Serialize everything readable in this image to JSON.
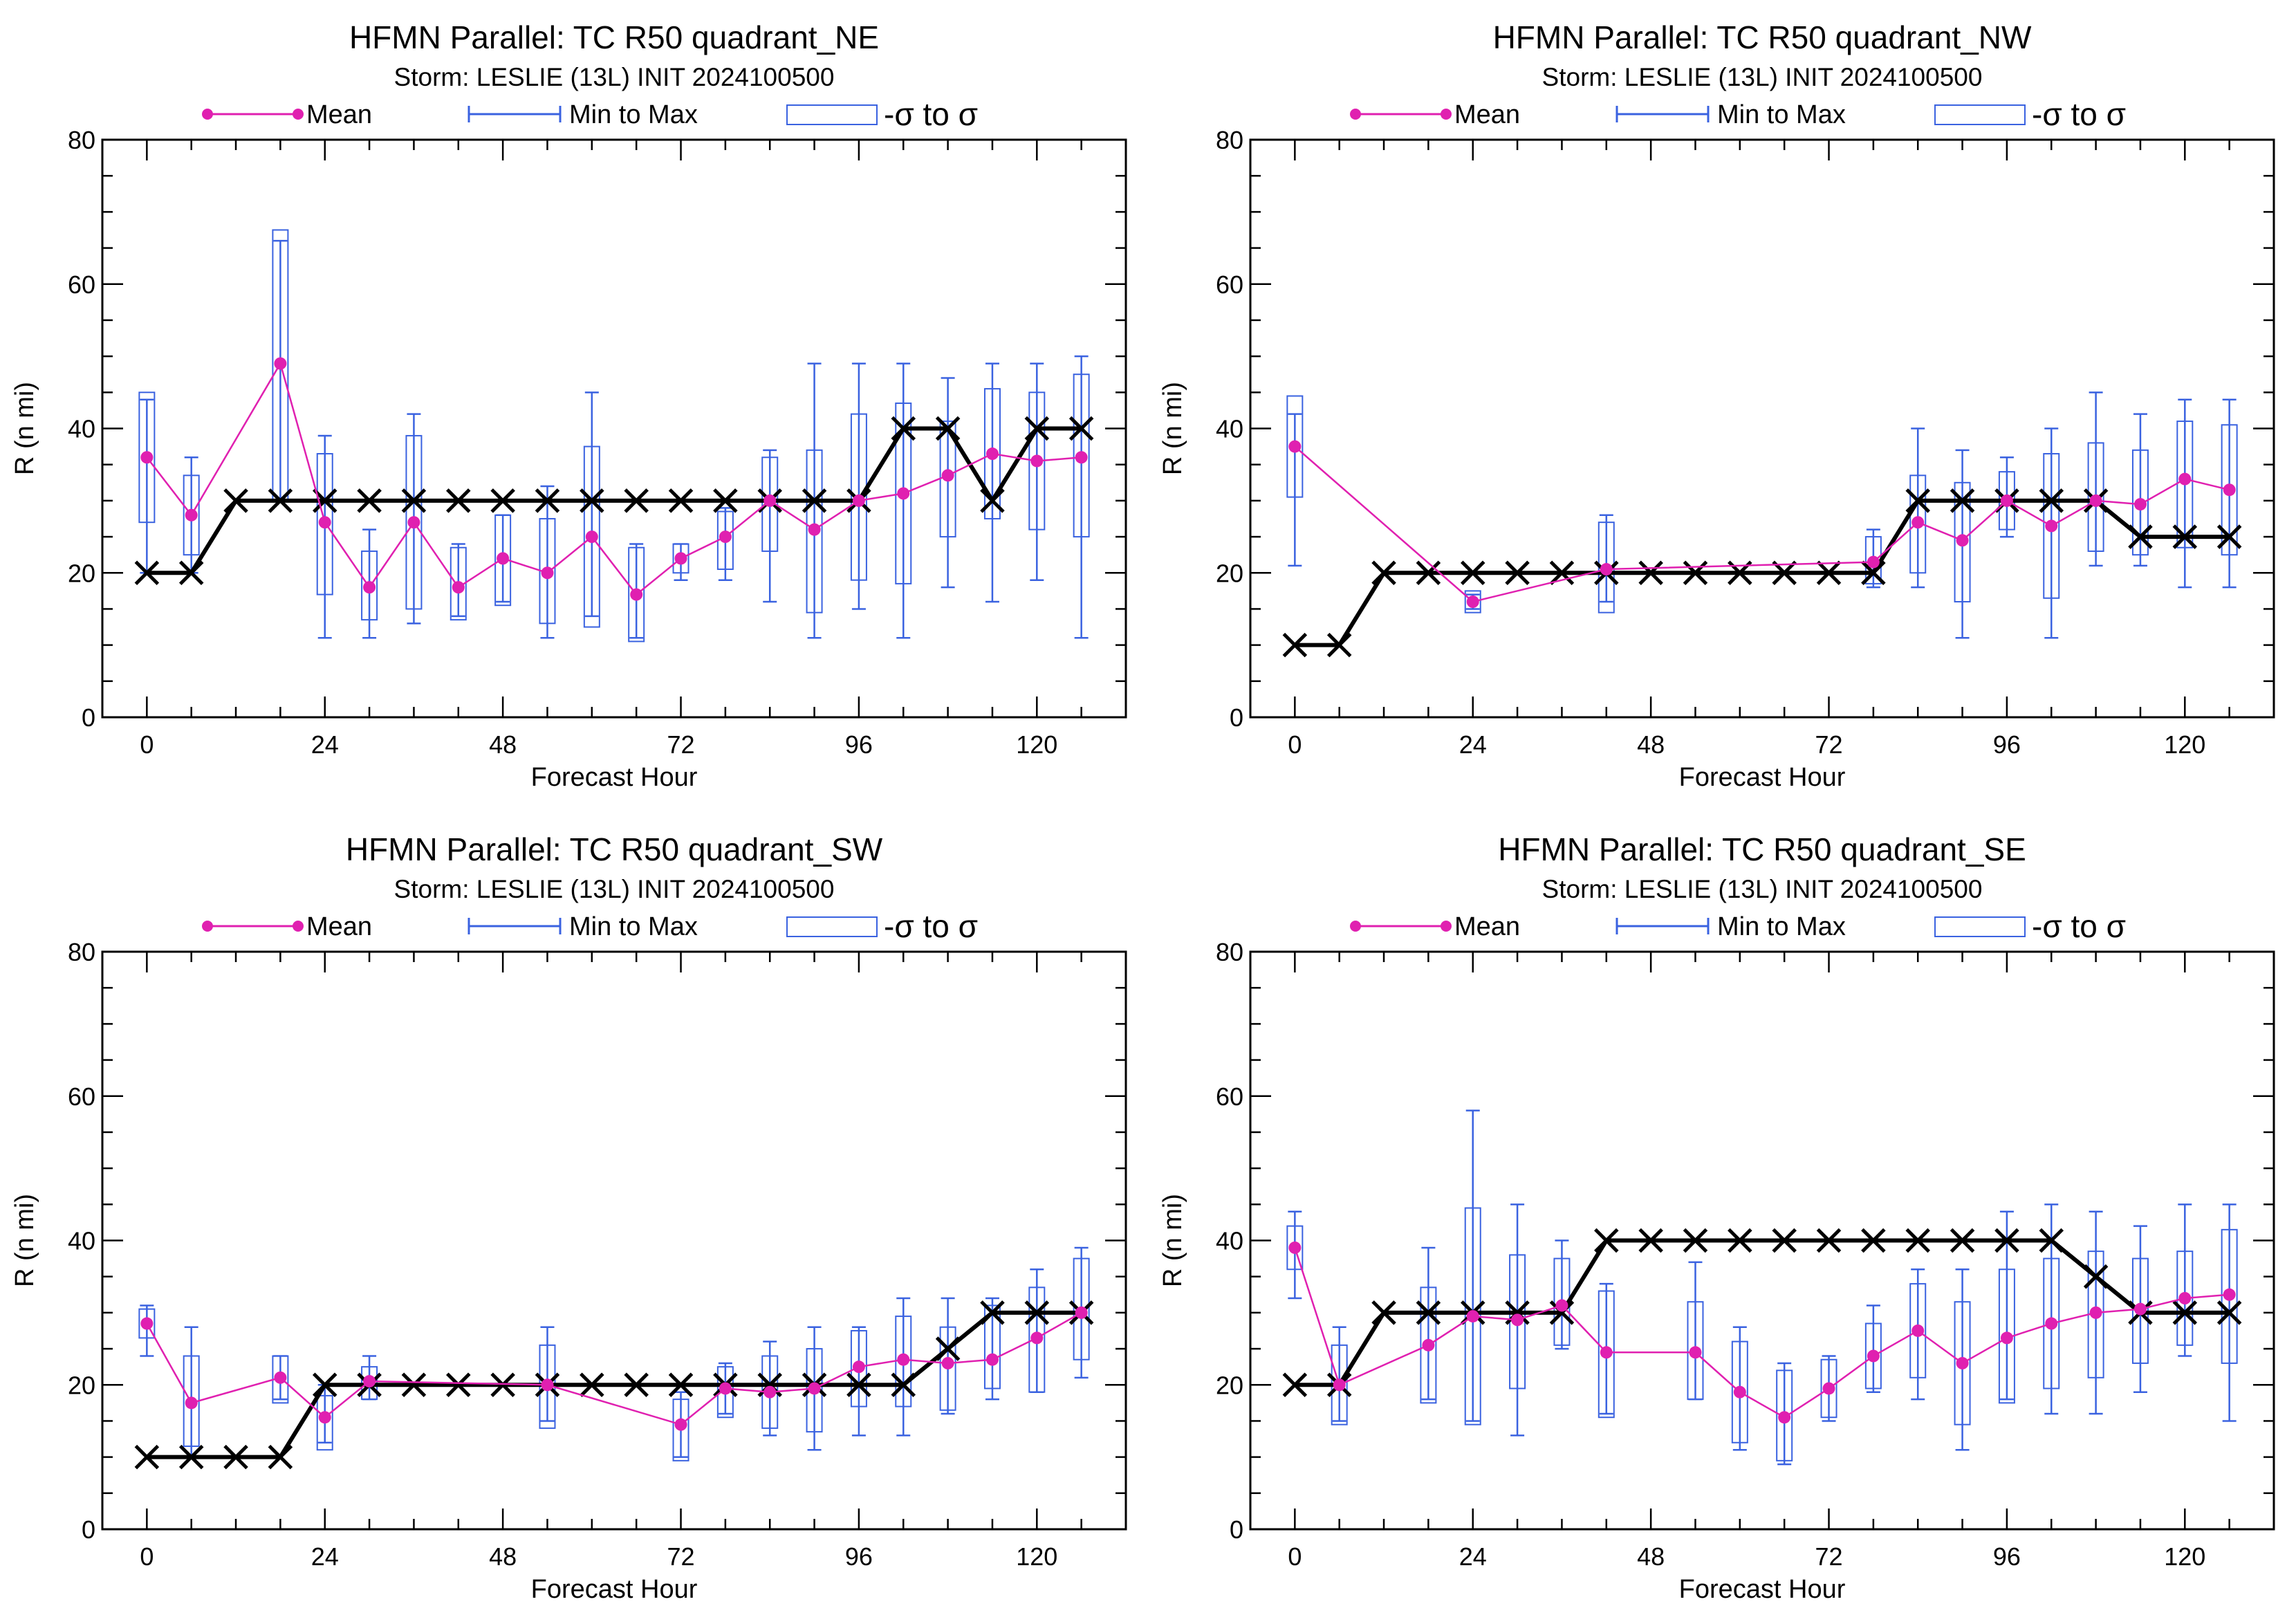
{
  "colors": {
    "mean": "#e020b0",
    "range": "#3a62e0",
    "best_track": "#000000",
    "axis": "#000000"
  },
  "legend": {
    "mean": "Mean",
    "minmax": "Min to Max",
    "sigma": "-σ to σ"
  },
  "xlabel": "Forecast Hour",
  "ylabel": "R (n mi)",
  "xticks": [
    "0",
    "24",
    "48",
    "72",
    "96",
    "120"
  ],
  "yticks": [
    "0",
    "20",
    "40",
    "60",
    "80"
  ],
  "chart_data": [
    {
      "type": "box",
      "title": "HFMN Parallel: TC  R50 quadrant_NE",
      "subtitle": "Storm: LESLIE (13L) INIT 2024100500",
      "xlim": [
        -6,
        132
      ],
      "ylim": [
        0,
        80
      ],
      "hours": [
        0,
        6,
        18,
        24,
        30,
        36,
        42,
        48,
        54,
        60,
        66,
        72,
        78,
        84,
        90,
        96,
        102,
        108,
        114,
        120,
        126
      ],
      "mean": [
        36,
        28,
        49,
        27,
        18,
        27,
        18,
        22,
        20,
        25,
        17,
        22,
        25,
        30,
        26,
        30,
        31,
        33.5,
        36.5,
        35.5,
        36
      ],
      "min": [
        20,
        20,
        30,
        11,
        11,
        13,
        14,
        16,
        11,
        14,
        11,
        19,
        19,
        16,
        11,
        15,
        11,
        18,
        16,
        19,
        11
      ],
      "max": [
        44,
        36,
        66,
        39,
        26,
        42,
        24,
        28,
        32,
        45,
        24,
        24,
        29,
        37,
        49,
        49,
        49,
        47,
        49,
        49,
        50
      ],
      "sig_lo": [
        27,
        22.5,
        30,
        17,
        13.5,
        15,
        13.5,
        15.5,
        13,
        12.5,
        10.5,
        20,
        20.5,
        23,
        14.5,
        19,
        18.5,
        25,
        27.5,
        26,
        25
      ],
      "sig_hi": [
        45,
        33.5,
        67.5,
        36.5,
        23,
        39,
        23.5,
        28,
        27.5,
        37.5,
        23.5,
        24,
        28.5,
        36,
        37,
        42,
        43.5,
        41,
        45.5,
        45,
        47.5
      ],
      "best_track": {
        "hours": [
          0,
          6,
          12,
          18,
          24,
          30,
          36,
          42,
          48,
          54,
          60,
          66,
          72,
          78,
          84,
          90,
          96,
          102,
          108,
          114,
          120,
          126
        ],
        "values": [
          20,
          20,
          30,
          30,
          30,
          30,
          30,
          30,
          30,
          30,
          30,
          30,
          30,
          30,
          30,
          30,
          30,
          40,
          40,
          30,
          40,
          40
        ]
      }
    },
    {
      "type": "box",
      "title": "HFMN Parallel: TC  R50 quadrant_NW",
      "subtitle": "Storm: LESLIE (13L) INIT 2024100500",
      "xlim": [
        -6,
        132
      ],
      "ylim": [
        0,
        80
      ],
      "hours": [
        0,
        24,
        42,
        78,
        84,
        90,
        96,
        102,
        108,
        114,
        120,
        126
      ],
      "mean": [
        37.5,
        16,
        20.5,
        21.5,
        27,
        24.5,
        30,
        26.5,
        30,
        29.5,
        33,
        31.5
      ],
      "min": [
        21,
        15,
        16,
        18,
        18,
        11,
        25,
        11,
        21,
        21,
        18,
        18
      ],
      "max": [
        42,
        17,
        28,
        26,
        40,
        37,
        36,
        40,
        45,
        42,
        44,
        44
      ],
      "sig_lo": [
        30.5,
        14.5,
        14.5,
        18.5,
        20,
        16,
        26,
        16.5,
        23,
        22.5,
        23.5,
        22.5
      ],
      "sig_hi": [
        44.5,
        17.5,
        27,
        25,
        33.5,
        32.5,
        34,
        36.5,
        38,
        37,
        41,
        40.5
      ],
      "best_track": {
        "hours": [
          0,
          6,
          12,
          18,
          24,
          30,
          36,
          42,
          48,
          54,
          60,
          66,
          72,
          78,
          84,
          90,
          96,
          102,
          108,
          114,
          120,
          126
        ],
        "values": [
          10,
          10,
          20,
          20,
          20,
          20,
          20,
          20,
          20,
          20,
          20,
          20,
          20,
          20,
          30,
          30,
          30,
          30,
          30,
          25,
          25,
          25
        ]
      }
    },
    {
      "type": "box",
      "title": "HFMN Parallel: TC  R50 quadrant_SW",
      "subtitle": "Storm: LESLIE (13L) INIT 2024100500",
      "xlim": [
        -6,
        132
      ],
      "ylim": [
        0,
        80
      ],
      "hours": [
        0,
        6,
        18,
        24,
        30,
        54,
        72,
        78,
        84,
        90,
        96,
        102,
        108,
        114,
        120,
        126
      ],
      "mean": [
        28.5,
        17.5,
        21,
        15.5,
        20.5,
        20,
        14.5,
        19.5,
        19,
        19.5,
        22.5,
        23.5,
        23,
        23.5,
        26.5,
        30
      ],
      "min": [
        24,
        10,
        18,
        12,
        18,
        15,
        10,
        16,
        13,
        11,
        13,
        13,
        16,
        18,
        19,
        21
      ],
      "max": [
        31,
        28,
        24,
        20,
        24,
        28,
        19,
        23,
        26,
        28,
        28,
        32,
        32,
        32,
        36,
        39
      ],
      "sig_lo": [
        26.5,
        11.5,
        17.5,
        11,
        18,
        14,
        9.5,
        15.5,
        14,
        13.5,
        17,
        17,
        16.5,
        19.5,
        19,
        23.5
      ],
      "sig_hi": [
        30.5,
        24,
        24,
        18.5,
        22.5,
        25.5,
        18,
        22.5,
        24,
        25,
        27.5,
        29.5,
        28,
        31,
        33.5,
        37.5
      ],
      "best_track": {
        "hours": [
          0,
          6,
          12,
          18,
          24,
          30,
          36,
          42,
          48,
          54,
          60,
          66,
          72,
          78,
          84,
          90,
          96,
          102,
          108,
          114,
          120,
          126
        ],
        "values": [
          10,
          10,
          10,
          10,
          20,
          20,
          20,
          20,
          20,
          20,
          20,
          20,
          20,
          20,
          20,
          20,
          20,
          20,
          25,
          30,
          30,
          30
        ]
      }
    },
    {
      "type": "box",
      "title": "HFMN Parallel: TC  R50 quadrant_SE",
      "subtitle": "Storm: LESLIE (13L) INIT 2024100500",
      "xlim": [
        -6,
        132
      ],
      "ylim": [
        0,
        80
      ],
      "hours": [
        0,
        6,
        18,
        24,
        30,
        36,
        42,
        54,
        60,
        66,
        72,
        78,
        84,
        90,
        96,
        102,
        108,
        114,
        120,
        126
      ],
      "mean": [
        39,
        20,
        25.5,
        29.5,
        29,
        31,
        24.5,
        24.5,
        19,
        15.5,
        19.5,
        24,
        27.5,
        23,
        26.5,
        28.5,
        30,
        30.5,
        32,
        32.5
      ],
      "min": [
        32,
        15,
        18,
        15,
        13,
        25,
        16,
        18,
        11,
        9,
        15,
        19,
        18,
        11,
        18,
        16,
        16,
        19,
        24,
        15
      ],
      "max": [
        44,
        28,
        39,
        58,
        45,
        40,
        34,
        37,
        28,
        23,
        24,
        31,
        36,
        36,
        44,
        45,
        44,
        42,
        45,
        45
      ],
      "sig_lo": [
        36,
        14.5,
        17.5,
        14.5,
        19.5,
        25.5,
        15.5,
        18,
        12,
        9.5,
        15.5,
        19.5,
        21,
        14.5,
        17.5,
        19.5,
        21,
        23,
        25.5,
        23
      ],
      "sig_hi": [
        42,
        25.5,
        33.5,
        44.5,
        38,
        37.5,
        33,
        31.5,
        26,
        22,
        23.5,
        28.5,
        34,
        31.5,
        36,
        37.5,
        38.5,
        37.5,
        38.5,
        41.5
      ],
      "best_track": {
        "hours": [
          0,
          6,
          12,
          18,
          24,
          30,
          36,
          42,
          48,
          54,
          60,
          66,
          72,
          78,
          84,
          90,
          96,
          102,
          108,
          114,
          120,
          126
        ],
        "values": [
          20,
          20,
          30,
          30,
          30,
          30,
          30,
          40,
          40,
          40,
          40,
          40,
          40,
          40,
          40,
          40,
          40,
          40,
          35,
          30,
          30,
          30
        ]
      }
    }
  ]
}
